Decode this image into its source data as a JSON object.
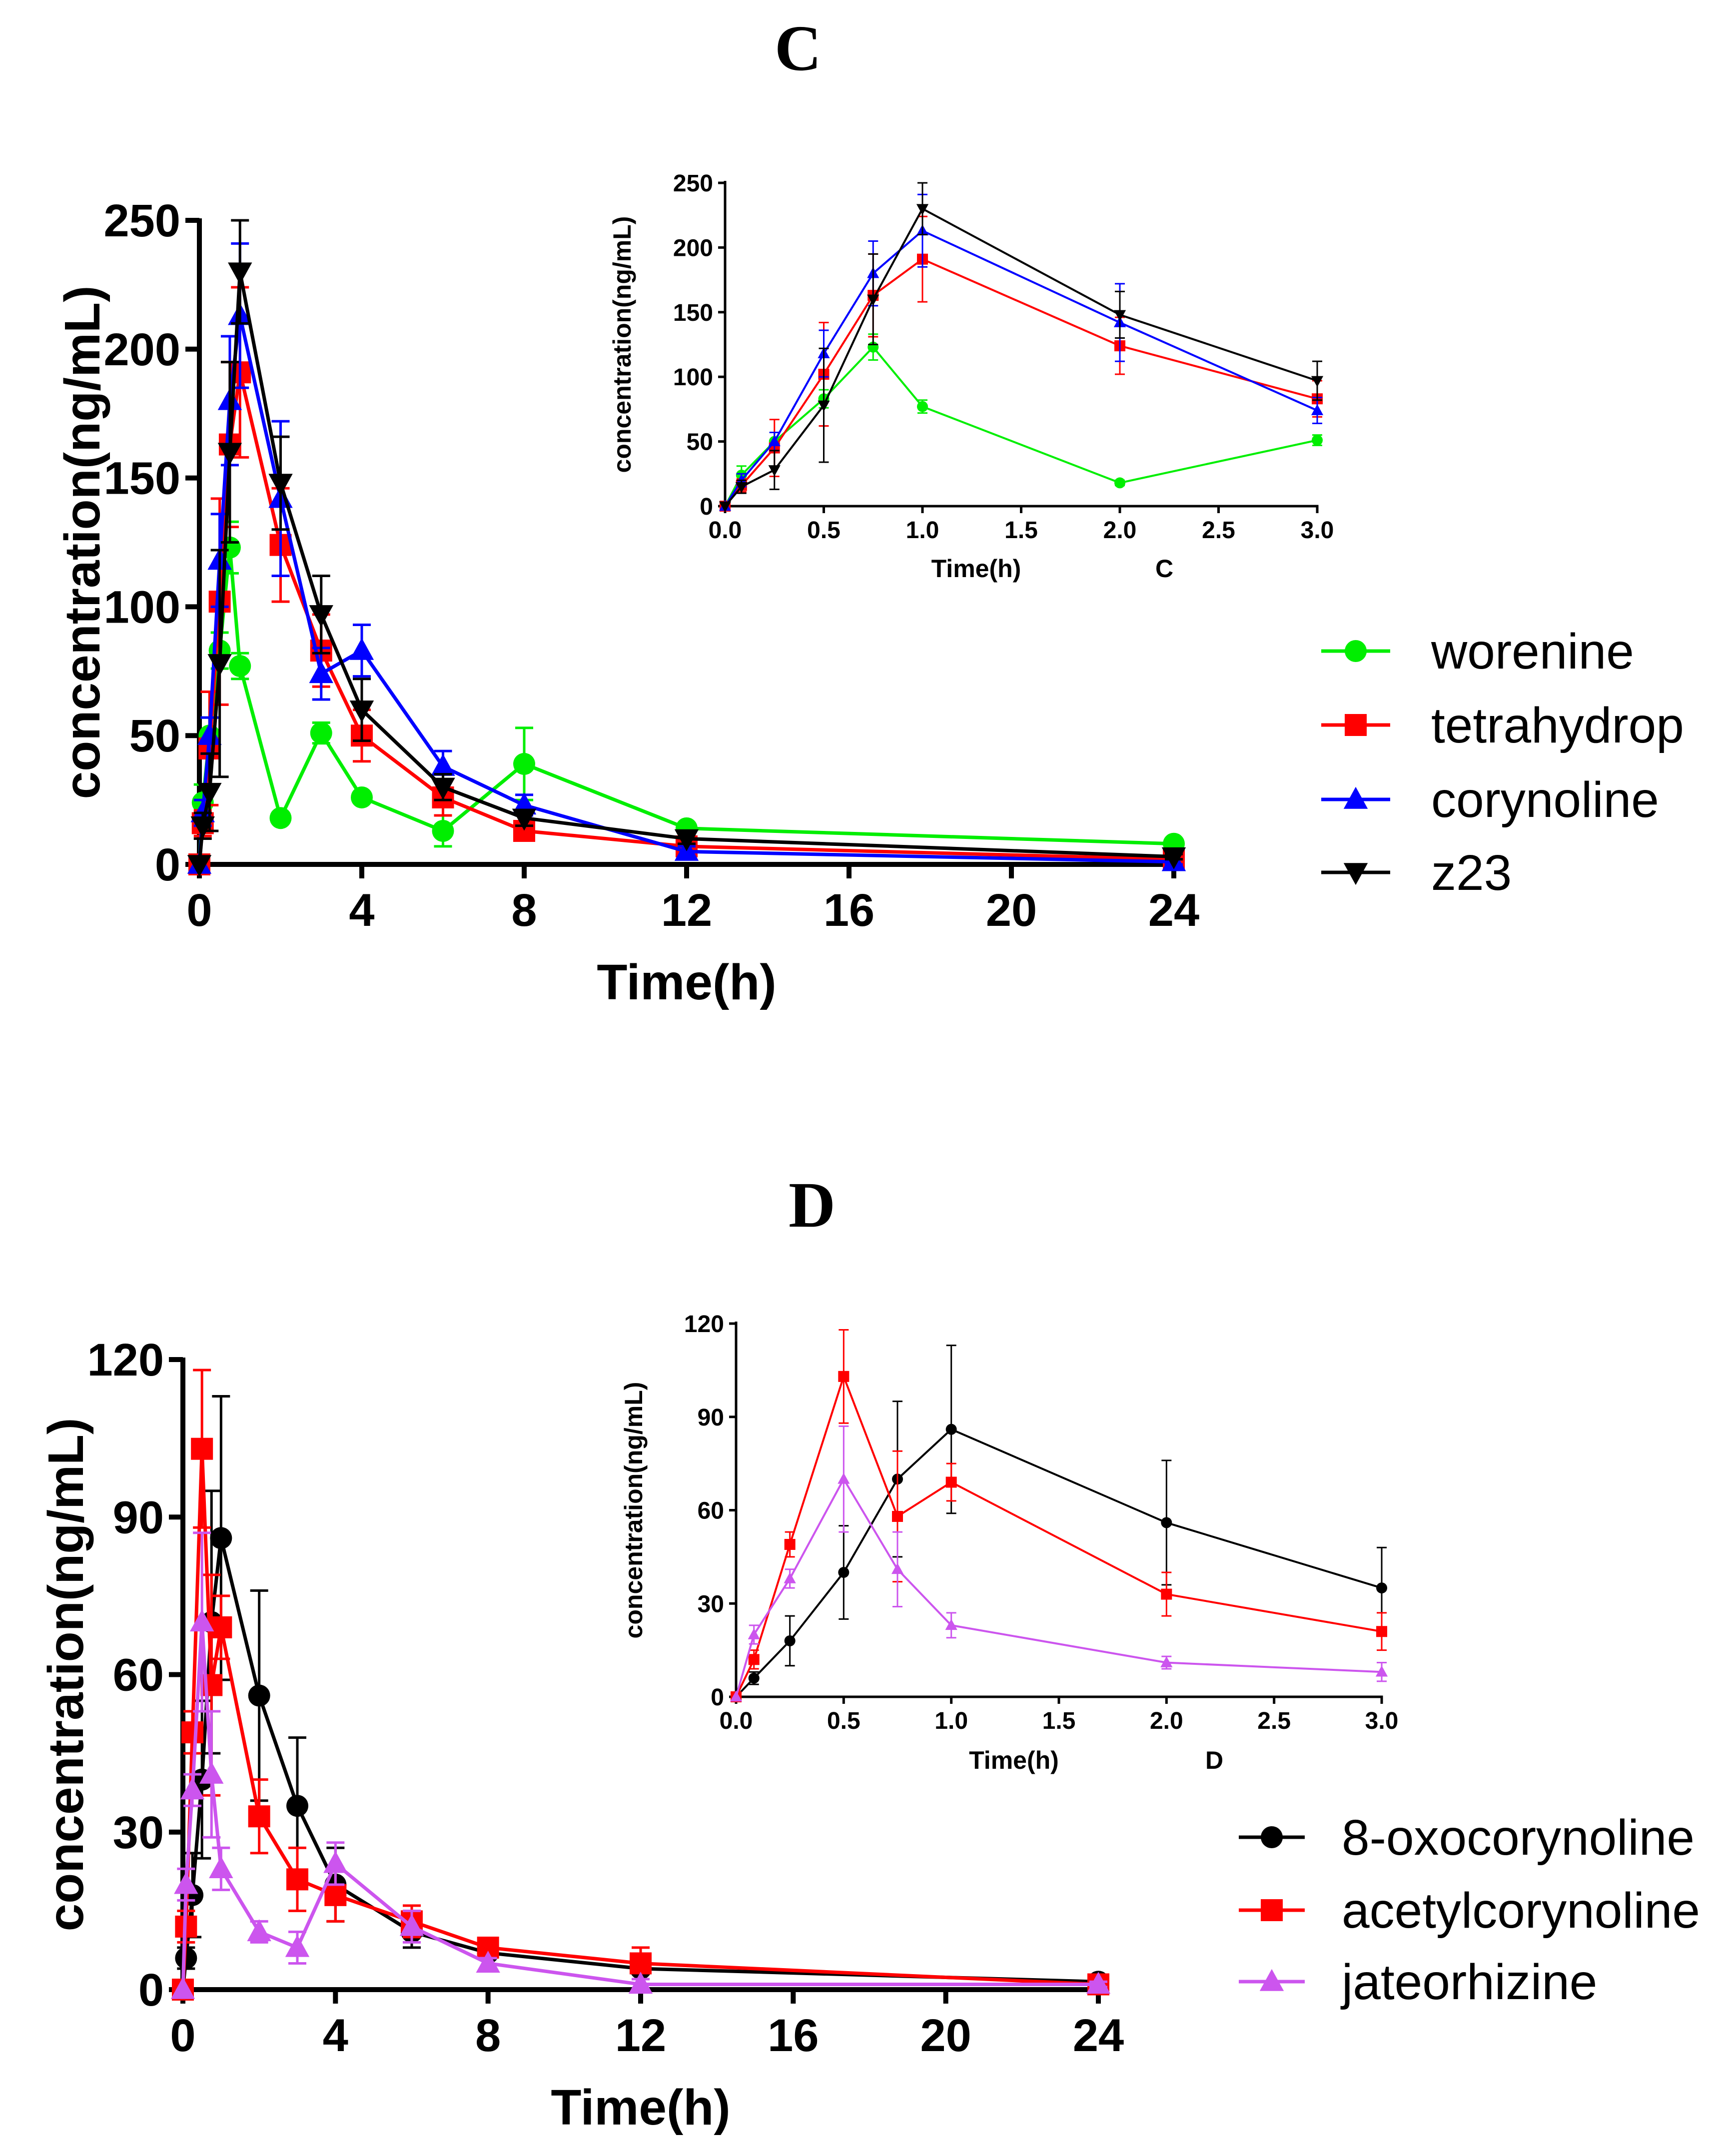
{
  "panels": [
    {
      "title": "C"
    },
    {
      "title": "D"
    }
  ],
  "chart_data": [
    {
      "id": "C-main",
      "type": "line",
      "panel": "C",
      "xlabel": "Time(h)",
      "ylabel": "concentration(ng/mL)",
      "annotation": "",
      "xlim": [
        0,
        24
      ],
      "ylim": [
        0,
        250
      ],
      "xticks": [
        0,
        4,
        8,
        12,
        16,
        20,
        24
      ],
      "yticks": [
        0,
        50,
        100,
        150,
        200,
        250
      ],
      "legend": "right",
      "x": [
        0,
        0.083,
        0.25,
        0.5,
        0.75,
        1,
        2,
        3,
        4,
        6,
        8,
        12,
        24
      ],
      "series": [
        {
          "name": "worenine",
          "color": "#00ee00",
          "marker": "circle",
          "values": [
            0,
            24,
            50,
            83,
            123,
            77,
            18,
            51,
            26,
            13,
            39,
            14,
            8
          ],
          "err": [
            0,
            7,
            7,
            7,
            10,
            5,
            2,
            4,
            2,
            6,
            14,
            2,
            2
          ]
        },
        {
          "name": "tetrahydrop",
          "color": "#ff0000",
          "marker": "square",
          "values": [
            0,
            16,
            45,
            102,
            163,
            191,
            124,
            83,
            50,
            26,
            13,
            7,
            2
          ],
          "err": [
            0,
            5,
            22,
            40,
            32,
            33,
            22,
            14,
            10,
            7,
            3,
            3,
            1
          ]
        },
        {
          "name": "corynoline",
          "color": "#0000ff",
          "marker": "triangle-up",
          "values": [
            0,
            20,
            50,
            118,
            180,
            213,
            142,
            74,
            83,
            38,
            23,
            5,
            1
          ],
          "err": [
            0,
            5,
            7,
            18,
            25,
            28,
            30,
            10,
            10,
            6,
            4,
            2,
            1
          ]
        },
        {
          "name": "z23",
          "color": "#000000",
          "marker": "triangle-down",
          "values": [
            0,
            15,
            28,
            78,
            160,
            230,
            148,
            97,
            60,
            30,
            18,
            10,
            3
          ],
          "err": [
            0,
            5,
            15,
            44,
            35,
            20,
            18,
            15,
            12,
            5,
            3,
            2,
            1
          ]
        }
      ]
    },
    {
      "id": "C-inset",
      "type": "line",
      "panel": "C",
      "xlabel": "Time(h)",
      "ylabel": "concentration(ng/mL)",
      "annotation": "C",
      "xlim": [
        0,
        3
      ],
      "ylim": [
        0,
        250
      ],
      "xticks": [
        "0.0",
        "0.5",
        "1.0",
        "1.5",
        "2.0",
        "2.5",
        "3.0"
      ],
      "yticks": [
        0,
        50,
        100,
        150,
        200,
        250
      ],
      "x": [
        0,
        0.083,
        0.25,
        0.5,
        0.75,
        1,
        2,
        3
      ],
      "series": [
        {
          "name": "worenine",
          "color": "#00ee00",
          "marker": "circle",
          "values": [
            0,
            24,
            50,
            83,
            123,
            77,
            18,
            51
          ],
          "err": [
            0,
            7,
            7,
            7,
            10,
            5,
            2,
            4
          ]
        },
        {
          "name": "tetrahydrop",
          "color": "#ff0000",
          "marker": "square",
          "values": [
            0,
            16,
            45,
            102,
            163,
            191,
            124,
            83
          ],
          "err": [
            0,
            5,
            22,
            40,
            32,
            33,
            22,
            14
          ]
        },
        {
          "name": "corynoline",
          "color": "#0000ff",
          "marker": "triangle-up",
          "values": [
            0,
            20,
            50,
            118,
            180,
            213,
            142,
            74
          ],
          "err": [
            0,
            5,
            7,
            18,
            25,
            28,
            30,
            10
          ]
        },
        {
          "name": "z23",
          "color": "#000000",
          "marker": "triangle-down",
          "values": [
            0,
            15,
            28,
            78,
            160,
            230,
            148,
            97
          ],
          "err": [
            0,
            5,
            15,
            44,
            35,
            20,
            18,
            15
          ]
        }
      ]
    },
    {
      "id": "D-main",
      "type": "line",
      "panel": "D",
      "xlabel": "Time(h)",
      "ylabel": "concentration(ng/mL)",
      "annotation": "",
      "xlim": [
        0,
        24
      ],
      "ylim": [
        0,
        120
      ],
      "xticks": [
        0,
        4,
        8,
        12,
        16,
        20,
        24
      ],
      "yticks": [
        0,
        30,
        60,
        90,
        120
      ],
      "legend": "right",
      "x": [
        0,
        0.083,
        0.25,
        0.5,
        0.75,
        1,
        2,
        3,
        4,
        6,
        8,
        12,
        24
      ],
      "series": [
        {
          "name": "8-oxocorynoline",
          "color": "#000000",
          "marker": "circle",
          "values": [
            0,
            6,
            18,
            40,
            70,
            86,
            56,
            35,
            20,
            11,
            7,
            4,
            1.5
          ],
          "err": [
            0,
            2,
            8,
            15,
            25,
            27,
            20,
            13,
            7,
            3,
            1,
            1,
            0.5
          ]
        },
        {
          "name": "acetylcorynoline",
          "color": "#ff0000",
          "marker": "square",
          "values": [
            0,
            12,
            49,
            103,
            58,
            69,
            33,
            21,
            18,
            13,
            8,
            5,
            1
          ],
          "err": [
            0,
            3,
            4,
            15,
            21,
            6,
            7,
            6,
            5,
            3,
            1,
            3,
            0.5
          ]
        },
        {
          "name": "jateorhizine",
          "color": "#cc55ee",
          "marker": "triangle-up",
          "values": [
            0,
            20,
            38,
            70,
            41,
            23,
            11,
            8,
            24,
            12,
            5,
            1,
            1
          ],
          "err": [
            0,
            3,
            3,
            17,
            12,
            4,
            2,
            3,
            4,
            3,
            1,
            1,
            0.5
          ]
        }
      ]
    },
    {
      "id": "D-inset",
      "type": "line",
      "panel": "D",
      "xlabel": "Time(h)",
      "ylabel": "concentration(ng/mL)",
      "annotation": "D",
      "xlim": [
        0,
        3
      ],
      "ylim": [
        0,
        120
      ],
      "xticks": [
        "0.0",
        "0.5",
        "1.0",
        "1.5",
        "2.0",
        "2.5",
        "3.0"
      ],
      "yticks": [
        0,
        30,
        60,
        90,
        120
      ],
      "x": [
        0,
        0.083,
        0.25,
        0.5,
        0.75,
        1,
        2,
        3
      ],
      "series": [
        {
          "name": "8-oxocorynoline",
          "color": "#000000",
          "marker": "circle",
          "values": [
            0,
            6,
            18,
            40,
            70,
            86,
            56,
            35
          ],
          "err": [
            0,
            2,
            8,
            15,
            25,
            27,
            20,
            13
          ]
        },
        {
          "name": "acetylcorynoline",
          "color": "#ff0000",
          "marker": "square",
          "values": [
            0,
            12,
            49,
            103,
            58,
            69,
            33,
            21
          ],
          "err": [
            0,
            3,
            4,
            15,
            21,
            6,
            7,
            6
          ]
        },
        {
          "name": "jateorhizine",
          "color": "#cc55ee",
          "marker": "triangle-up",
          "values": [
            0,
            20,
            38,
            70,
            41,
            23,
            11,
            8
          ],
          "err": [
            0,
            3,
            3,
            17,
            12,
            4,
            2,
            3
          ]
        }
      ]
    }
  ]
}
